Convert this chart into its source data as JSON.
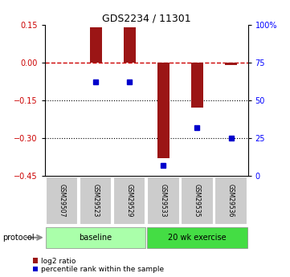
{
  "title": "GDS2234 / 11301",
  "samples": [
    "GSM29507",
    "GSM29523",
    "GSM29529",
    "GSM29533",
    "GSM29535",
    "GSM29536"
  ],
  "log2_ratio": [
    0.0,
    0.14,
    0.14,
    -0.38,
    -0.18,
    -0.01
  ],
  "percentile_rank": [
    null,
    62,
    62,
    7,
    32,
    25
  ],
  "baseline_indices": [
    0,
    1,
    2
  ],
  "exercise_indices": [
    3,
    4,
    5
  ],
  "ylim_left": [
    -0.45,
    0.15
  ],
  "ylim_right": [
    0,
    100
  ],
  "yticks_left": [
    0.15,
    0,
    -0.15,
    -0.3,
    -0.45
  ],
  "yticks_right": [
    100,
    75,
    50,
    25,
    0
  ],
  "hlines_dotted": [
    -0.15,
    -0.3
  ],
  "bar_color": "#9B1515",
  "dot_color": "#0000CC",
  "baseline_color": "#AAFFAA",
  "exercise_color": "#44DD44",
  "sample_bg_color": "#CCCCCC",
  "zero_dash_color": "#CC0000",
  "title_fontsize": 9,
  "tick_fontsize": 7,
  "bar_width": 0.35,
  "protocol_label": "protocol",
  "baseline_label": "baseline",
  "exercise_label": "20 wk exercise",
  "legend_red": "log2 ratio",
  "legend_blue": "percentile rank within the sample"
}
